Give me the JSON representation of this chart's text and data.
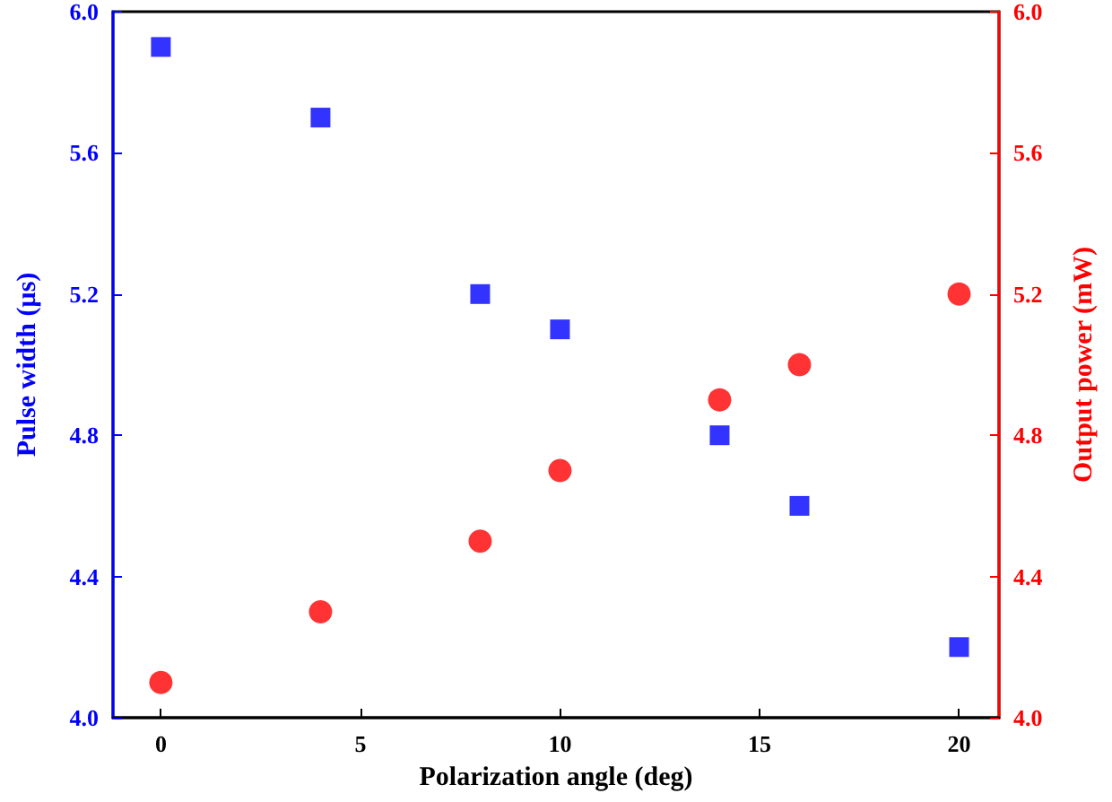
{
  "chart_data": {
    "type": "scatter",
    "xlabel": "Polarization angle (deg)",
    "ylabel": "Pulse width (µs)",
    "y2label": "Output power (mW)",
    "x": [
      0,
      4,
      8,
      10,
      14,
      16,
      20
    ],
    "series": [
      {
        "color": "#0000ff",
        "marker": "square",
        "values": [
          5.9,
          5.7,
          5.2,
          5.1,
          4.8,
          4.6,
          4.2
        ]
      },
      {
        "color": "#ff0000",
        "marker": "circle",
        "axis": "y2",
        "values": [
          4.1,
          4.3,
          4.5,
          4.7,
          4.9,
          5.0,
          5.2
        ]
      }
    ],
    "xlim": [
      -1.2,
      21
    ],
    "xticks": [
      0,
      5,
      10,
      15,
      20
    ],
    "ylim": [
      4.0,
      6.0
    ],
    "yticks": [
      {
        "value": 4,
        "label": "4.0"
      },
      {
        "value": 4.4,
        "label": "4.4"
      },
      {
        "value": 4.8,
        "label": "4.8"
      },
      {
        "value": 5.2,
        "label": "5.2"
      },
      {
        "value": 5.6,
        "label": "5.6"
      },
      {
        "value": 6,
        "label": "6.0"
      }
    ],
    "y2lim": [
      4.0,
      6.0
    ],
    "y2ticks": [
      {
        "value": 4,
        "label": "4.0"
      },
      {
        "value": 4.4,
        "label": "4.4"
      },
      {
        "value": 4.8,
        "label": "4.8"
      },
      {
        "value": 5.2,
        "label": "5.2"
      },
      {
        "value": 5.6,
        "label": "5.6"
      },
      {
        "value": 6,
        "label": "6.0"
      }
    ],
    "grid": false
  }
}
